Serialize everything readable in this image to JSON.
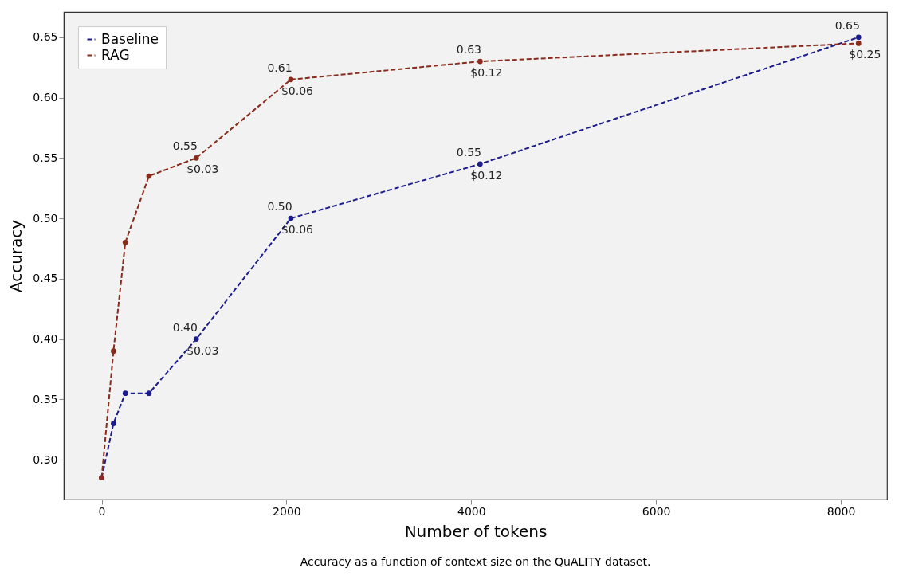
{
  "chart_data": {
    "type": "line",
    "xlabel": "Number of tokens",
    "ylabel": "Accuracy",
    "x": [
      0,
      128,
      256,
      512,
      1024,
      2048,
      4096,
      8192
    ],
    "series": [
      {
        "name": "Baseline",
        "color": "#1c1c8a",
        "values": [
          0.285,
          0.33,
          0.355,
          0.355,
          0.4,
          0.5,
          0.545,
          0.65
        ],
        "value_labels": [
          null,
          null,
          null,
          null,
          "0.40",
          "0.50",
          "0.55",
          "0.65"
        ]
      },
      {
        "name": "RAG",
        "color": "#882a1c",
        "values": [
          0.285,
          0.39,
          0.48,
          0.535,
          0.55,
          0.615,
          0.63,
          0.645
        ],
        "value_labels": [
          null,
          null,
          null,
          null,
          "0.55",
          "0.61",
          "0.63",
          null
        ]
      }
    ],
    "annotations": [
      {
        "text": "$0.03",
        "x": 1024,
        "y": 0.4
      },
      {
        "text": "$0.06",
        "x": 2048,
        "y": 0.5
      },
      {
        "text": "$0.12",
        "x": 4096,
        "y": 0.545
      },
      {
        "text": "$0.03",
        "x": 1024,
        "y": 0.55
      },
      {
        "text": "$0.06",
        "x": 2048,
        "y": 0.615
      },
      {
        "text": "$0.12",
        "x": 4096,
        "y": 0.63
      },
      {
        "text": "$0.25",
        "x": 8192,
        "y": 0.645
      },
      "Accuracy as a function of context size on the QuALITY dataset."
    ],
    "xlim": [
      -410,
      8500
    ],
    "xticks": [
      0,
      2000,
      4000,
      6000,
      8000
    ],
    "ylim": [
      0.267,
      0.671
    ],
    "yticks": [
      {
        "value": 0.3,
        "label": "0.30"
      },
      0.35,
      {
        "value": 0.4,
        "label": "0.40"
      },
      0.45,
      {
        "value": 0.5,
        "label": "0.50"
      },
      0.55,
      {
        "value": 0.6,
        "label": "0.60"
      },
      0.65
    ],
    "grid": false,
    "legend": "top left",
    "marker": "circle",
    "line_style": "dashed"
  }
}
